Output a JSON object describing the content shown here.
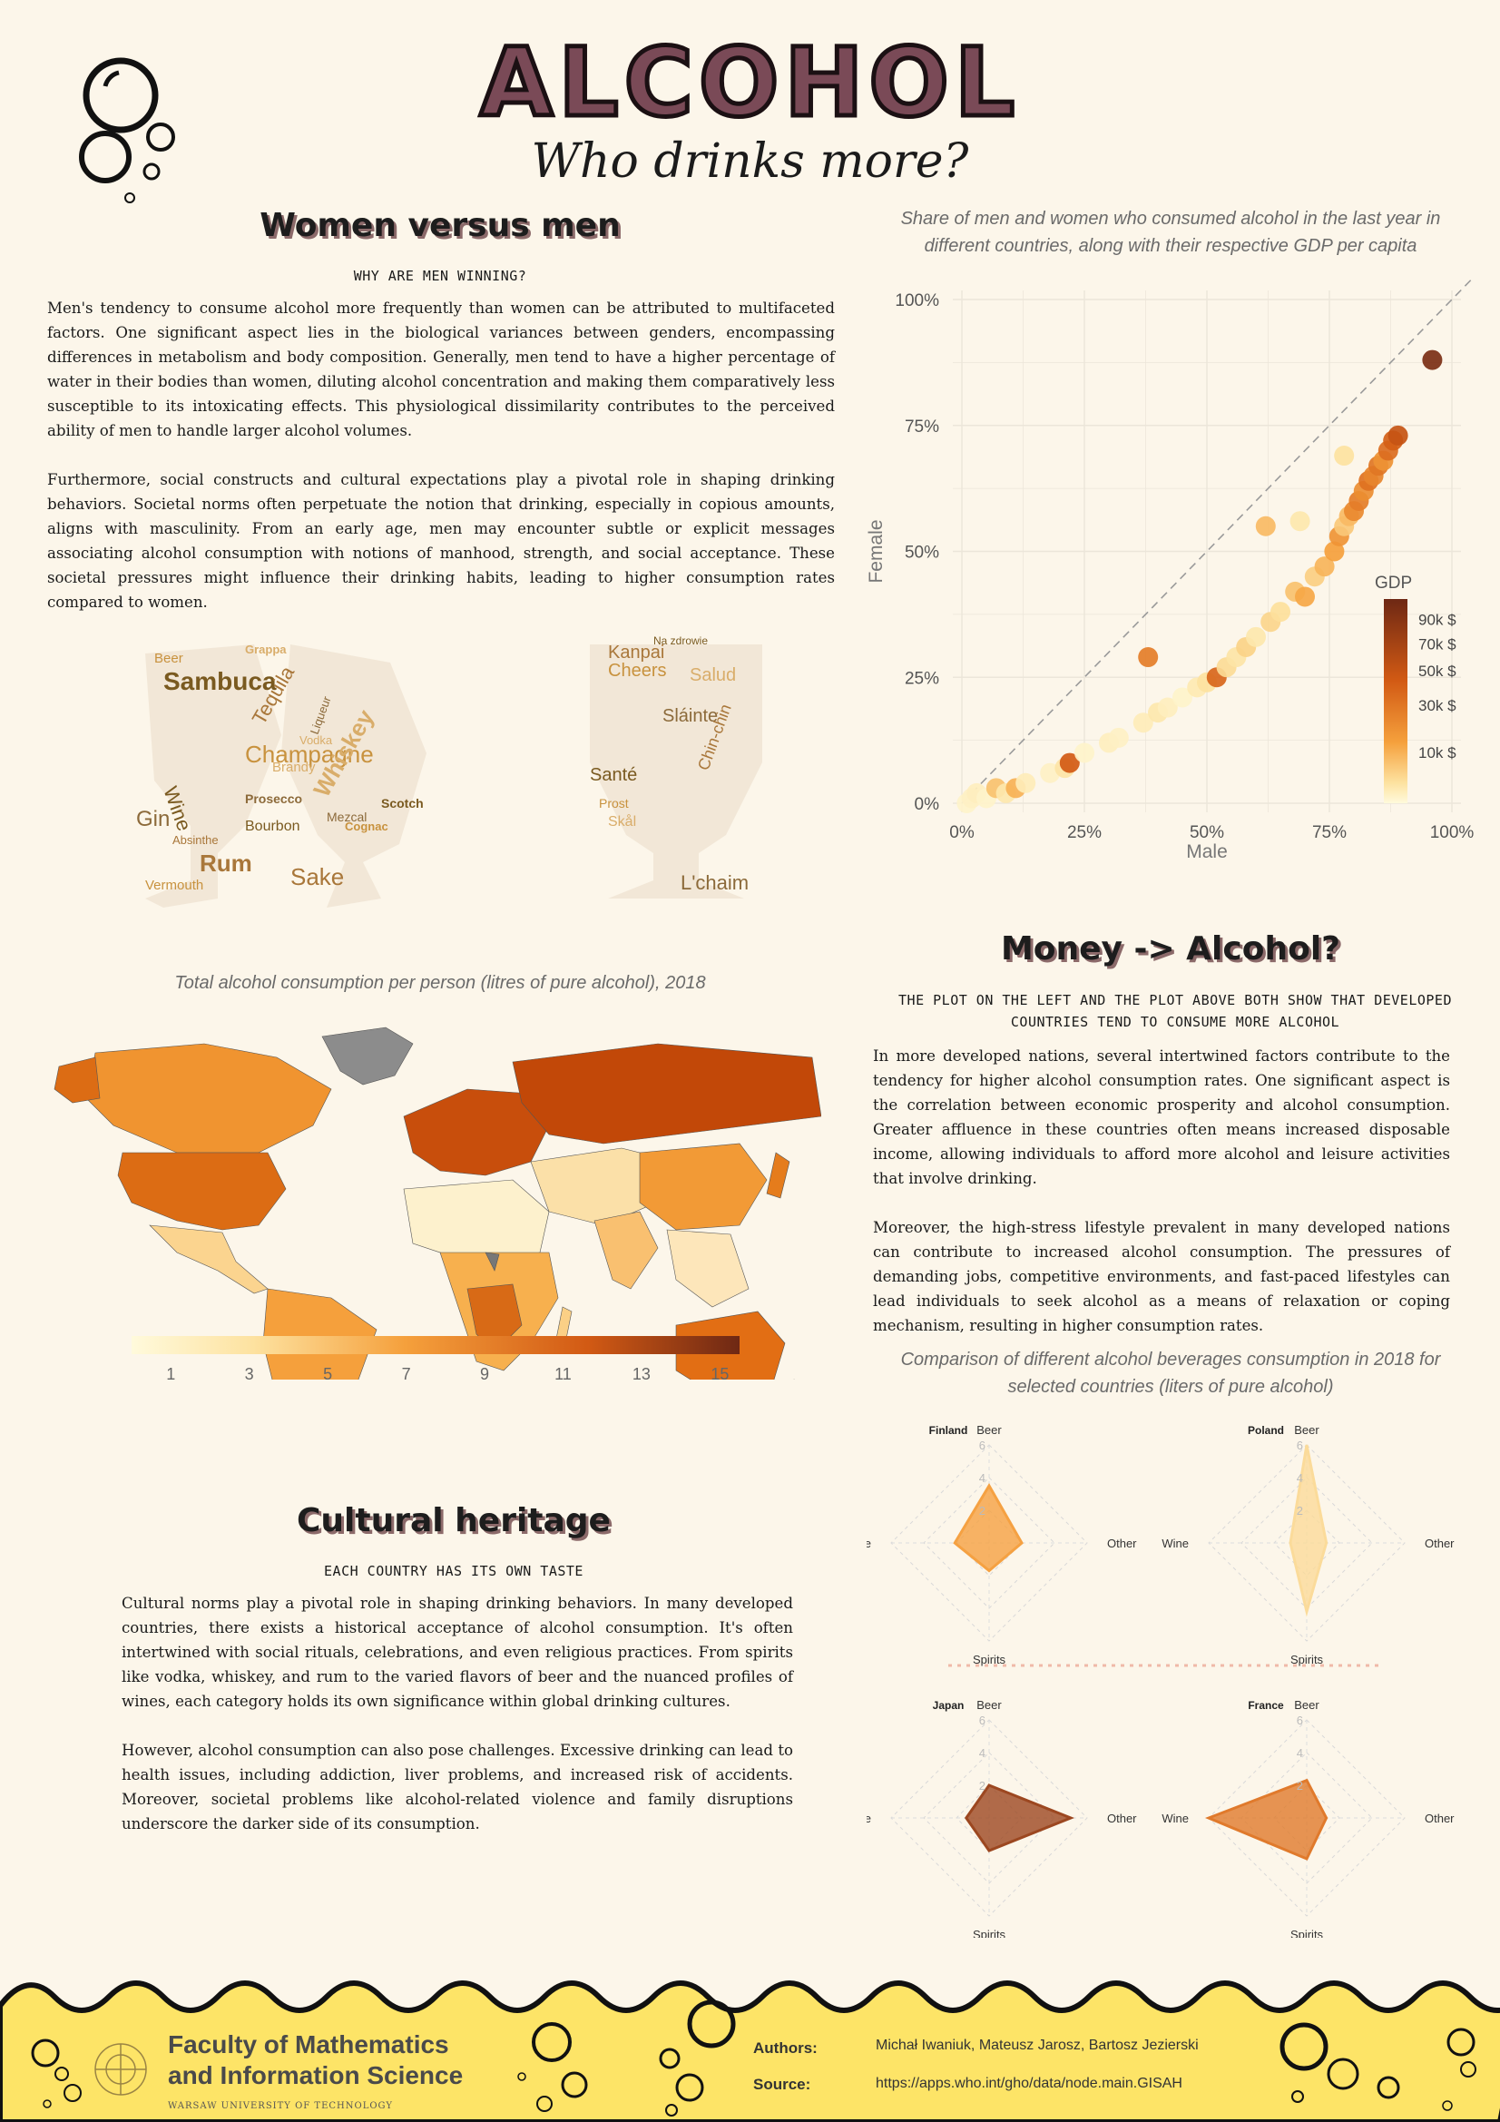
{
  "header": {
    "title": "ALCOHOL",
    "subtitle": "Who drinks more?"
  },
  "colors": {
    "background": "#fcf6ea",
    "footer": "#fde467",
    "accent": "#e07a12",
    "dark": "#7a3a1a"
  },
  "women_men": {
    "heading": "Women versus men",
    "subheading": "WHY ARE MEN WINNING?",
    "paragraphs": [
      "Men's tendency to consume alcohol more frequently than women can be attributed to multifaceted factors. One significant aspect lies in the biological variances between genders, encompassing differences in metabolism and body composition. Generally, men tend to have a higher percentage of water in their bodies than women, diluting alcohol concentration and making them comparatively less susceptible to its intoxicating effects. This physiological dissimilarity contributes to the perceived ability of men to handle larger alcohol volumes.",
      "Furthermore, social constructs and cultural expectations play a pivotal role in shaping drinking behaviors. Societal norms often perpetuate the notion that drinking, especially in copious amounts, aligns with masculinity. From an early age, men may encounter subtle or explicit messages associating alcohol consumption with notions of manhood, strength, and social acceptance. These societal pressures might influence their drinking habits, leading to higher consumption rates compared to women."
    ]
  },
  "word_clouds": {
    "glasses_words": [
      "Sambuca",
      "Tequila",
      "Champagne",
      "Whiskey",
      "Gin",
      "Wine",
      "Rum",
      "Vermouth",
      "Brandy",
      "Prosecco",
      "Bourbon",
      "Absinthe",
      "Cognac",
      "Vodka",
      "Liqueur",
      "Scotch",
      "Sake",
      "Beer",
      "Grappa",
      "Mezcal"
    ],
    "toast_words": [
      "Kanpai",
      "Cheers",
      "Salud",
      "Sláinte",
      "Santé",
      "Chin-chin",
      "Prost",
      "Skål",
      "L'chaim",
      "Na zdrowie"
    ]
  },
  "money": {
    "heading": "Money -> Alcohol?",
    "subheading": "THE PLOT ON THE LEFT AND THE PLOT ABOVE BOTH SHOW THAT DEVELOPED COUNTRIES TEND TO CONSUME MORE ALCOHOL",
    "paragraphs": [
      "In more developed nations, several intertwined factors contribute to the tendency for higher alcohol consumption rates. One significant aspect is the correlation between economic prosperity and alcohol consumption. Greater affluence in these countries often means increased disposable income, allowing individuals to afford more alcohol and leisure activities that involve drinking.",
      "Moreover, the high-stress lifestyle prevalent in many developed nations can contribute to increased alcohol consumption. The pressures of demanding jobs, competitive environments, and fast-paced lifestyles can lead individuals to seek alcohol as a means of relaxation or coping mechanism, resulting in higher consumption rates."
    ]
  },
  "cultural": {
    "heading": "Cultural heritage",
    "subheading": "EACH COUNTRY HAS ITS OWN TASTE",
    "paragraphs": [
      "Cultural norms play a pivotal role in shaping drinking behaviors. In many developed countries, there exists a historical acceptance of alcohol consumption. It's often intertwined with social rituals, celebrations, and even religious practices. From spirits like vodka, whiskey, and rum to the varied flavors of beer and the nuanced profiles of wines, each category holds its own significance within global drinking cultures.",
      "However,  alcohol consumption can also pose challenges. Excessive drinking can lead to health issues, including addiction, liver problems, and increased risk of accidents. Moreover, societal problems like alcohol-related violence and family disruptions underscore the darker side of its consumption."
    ]
  },
  "chart_data": [
    {
      "type": "scatter",
      "title": "Share of men and women who consumed alcohol in the last year in different countries, along with their respective GDP per capita",
      "xlabel": "Male",
      "ylabel": "Female",
      "xlim": [
        0,
        100
      ],
      "ylim": [
        0,
        100
      ],
      "x_ticks": [
        "0%",
        "25%",
        "50%",
        "75%",
        "100%"
      ],
      "y_ticks": [
        "0%",
        "25%",
        "50%",
        "75%",
        "100%"
      ],
      "legend_title": "GDP",
      "legend_ticks": [
        "90k $",
        "70k $",
        "50k $",
        "30k $",
        "10k $"
      ],
      "legend_placement": "right",
      "diagonal": "dashed y=x",
      "points": [
        {
          "x": 1,
          "y": 0,
          "gdp": 3
        },
        {
          "x": 2,
          "y": 1,
          "gdp": 4
        },
        {
          "x": 3,
          "y": 2,
          "gdp": 5
        },
        {
          "x": 5,
          "y": 1,
          "gdp": 3
        },
        {
          "x": 7,
          "y": 3,
          "gdp": 20
        },
        {
          "x": 9,
          "y": 2,
          "gdp": 8
        },
        {
          "x": 11,
          "y": 3,
          "gdp": 25
        },
        {
          "x": 13,
          "y": 4,
          "gdp": 6
        },
        {
          "x": 18,
          "y": 6,
          "gdp": 4
        },
        {
          "x": 21,
          "y": 7,
          "gdp": 9
        },
        {
          "x": 22,
          "y": 8,
          "gdp": 60
        },
        {
          "x": 25,
          "y": 10,
          "gdp": 3
        },
        {
          "x": 30,
          "y": 12,
          "gdp": 5
        },
        {
          "x": 32,
          "y": 13,
          "gdp": 4
        },
        {
          "x": 37,
          "y": 16,
          "gdp": 6
        },
        {
          "x": 38,
          "y": 29,
          "gdp": 45
        },
        {
          "x": 40,
          "y": 18,
          "gdp": 8
        },
        {
          "x": 42,
          "y": 19,
          "gdp": 5
        },
        {
          "x": 45,
          "y": 21,
          "gdp": 3
        },
        {
          "x": 48,
          "y": 23,
          "gdp": 7
        },
        {
          "x": 50,
          "y": 24,
          "gdp": 10
        },
        {
          "x": 52,
          "y": 25,
          "gdp": 55
        },
        {
          "x": 54,
          "y": 27,
          "gdp": 12
        },
        {
          "x": 56,
          "y": 29,
          "gdp": 9
        },
        {
          "x": 58,
          "y": 31,
          "gdp": 15
        },
        {
          "x": 60,
          "y": 33,
          "gdp": 8
        },
        {
          "x": 62,
          "y": 55,
          "gdp": 22
        },
        {
          "x": 63,
          "y": 36,
          "gdp": 14
        },
        {
          "x": 65,
          "y": 38,
          "gdp": 11
        },
        {
          "x": 68,
          "y": 42,
          "gdp": 20
        },
        {
          "x": 69,
          "y": 56,
          "gdp": 8
        },
        {
          "x": 70,
          "y": 41,
          "gdp": 28
        },
        {
          "x": 72,
          "y": 45,
          "gdp": 16
        },
        {
          "x": 74,
          "y": 47,
          "gdp": 24
        },
        {
          "x": 76,
          "y": 50,
          "gdp": 30
        },
        {
          "x": 77,
          "y": 53,
          "gdp": 35
        },
        {
          "x": 78,
          "y": 55,
          "gdp": 18
        },
        {
          "x": 78,
          "y": 69,
          "gdp": 10
        },
        {
          "x": 79,
          "y": 57,
          "gdp": 22
        },
        {
          "x": 80,
          "y": 58,
          "gdp": 40
        },
        {
          "x": 81,
          "y": 60,
          "gdp": 45
        },
        {
          "x": 82,
          "y": 62,
          "gdp": 38
        },
        {
          "x": 83,
          "y": 64,
          "gdp": 50
        },
        {
          "x": 84,
          "y": 65,
          "gdp": 42
        },
        {
          "x": 85,
          "y": 67,
          "gdp": 48
        },
        {
          "x": 86,
          "y": 68,
          "gdp": 36
        },
        {
          "x": 87,
          "y": 70,
          "gdp": 52
        },
        {
          "x": 88,
          "y": 72,
          "gdp": 58
        },
        {
          "x": 89,
          "y": 73,
          "gdp": 65
        },
        {
          "x": 96,
          "y": 88,
          "gdp": 95
        }
      ]
    },
    {
      "type": "heatmap",
      "title": "Total alcohol consumption per person (litres of pure alcohol), 2018",
      "colorbar_ticks": [
        "1",
        "3",
        "5",
        "7",
        "9",
        "11",
        "13",
        "15"
      ],
      "colorbar_range": [
        0,
        15.5
      ]
    },
    {
      "type": "radar",
      "title": "Comparison of different alcohol beverages consumption in 2018 for selected countries (liters of pure alcohol)",
      "axes": [
        "Beer",
        "Other",
        "Spirits",
        "Wine"
      ],
      "ring_labels": [
        "2",
        "4",
        "6"
      ],
      "max": 6,
      "series": [
        {
          "name": "Finland",
          "values": [
            3.5,
            2.0,
            1.7,
            2.1
          ],
          "color": "#f5a142"
        },
        {
          "name": "Poland",
          "values": [
            6.0,
            1.2,
            4.2,
            1.0
          ],
          "color": "#fbdb9a"
        },
        {
          "name": "Japan",
          "values": [
            2.0,
            5.0,
            2.0,
            1.4
          ],
          "color": "#9c4720"
        },
        {
          "name": "France",
          "values": [
            2.3,
            1.2,
            2.5,
            6.0
          ],
          "color": "#e07a2c"
        }
      ]
    }
  ],
  "footer": {
    "faculty_line1": "Faculty of Mathematics",
    "faculty_line2": "and Information Science",
    "university": "WARSAW UNIVERSITY OF TECHNOLOGY",
    "authors_label": "Authors:",
    "authors": "Michał Iwaniuk, Mateusz Jarosz, Bartosz Jezierski",
    "source_label": "Source:",
    "source": "https://apps.who.int/gho/data/node.main.GISAH"
  }
}
